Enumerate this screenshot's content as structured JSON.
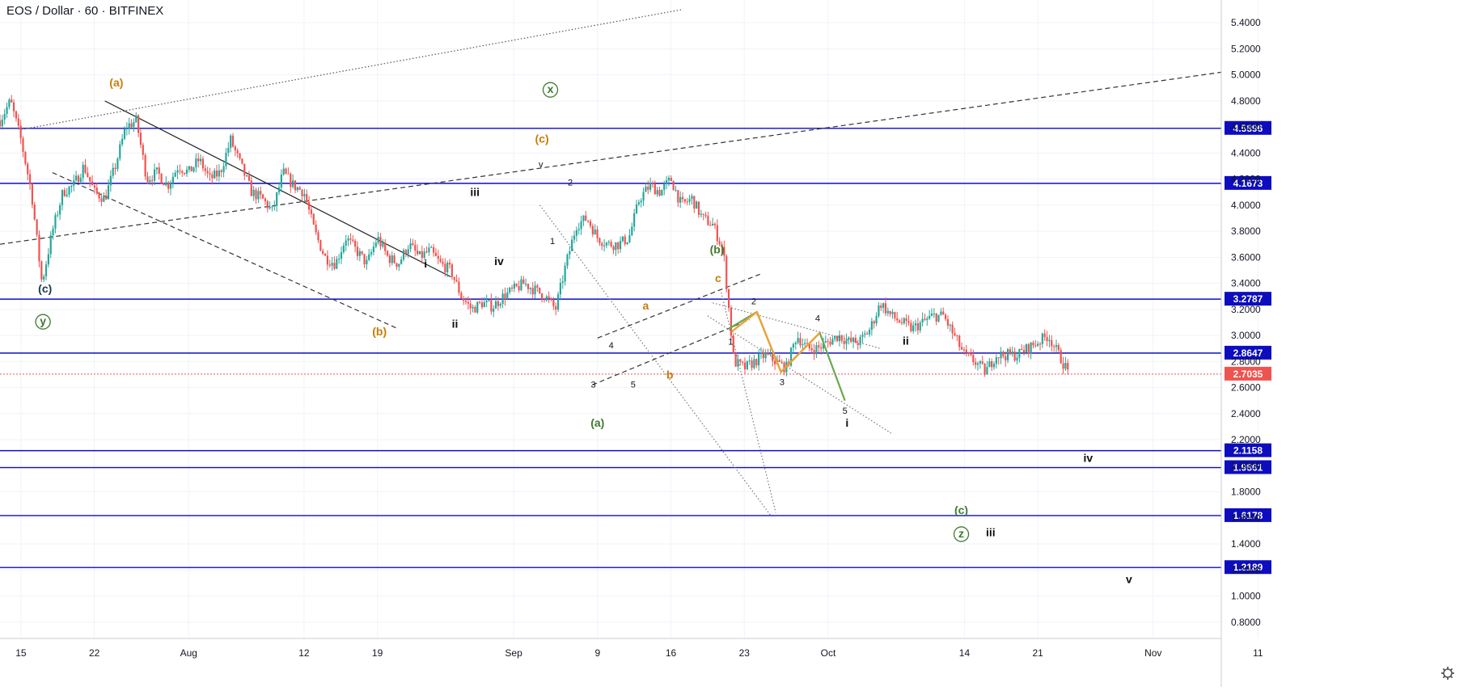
{
  "header": {
    "title": "EOS / Dollar · 60 · BITFINEX"
  },
  "colors": {
    "up": "#26a69a",
    "down": "#ef5350",
    "level": "#0d0dbf",
    "current": "#ef5350",
    "orange": "#c77d07",
    "green": "#3e7a2f",
    "dark": "#1b3a4b",
    "black": "#111111",
    "wave_green": "#6aa84f",
    "wave_orange": "#f0a030"
  },
  "chart_data": {
    "type": "candlestick",
    "title": "EOS / Dollar · 60 · BITFINEX",
    "ylim": [
      0.6,
      5.5
    ],
    "yticks": [
      5.4,
      5.2,
      5.0,
      4.8,
      4.6,
      4.4,
      4.2,
      4.0,
      3.8,
      3.6,
      3.4,
      3.2,
      3.0,
      2.8,
      2.6,
      2.4,
      2.2,
      2.0,
      1.8,
      1.6,
      1.4,
      1.2,
      1.0,
      0.8
    ],
    "x_domain_days": [
      0,
      116.5
    ],
    "xticks": [
      {
        "label": "15",
        "day": 2
      },
      {
        "label": "22",
        "day": 9
      },
      {
        "label": "Aug",
        "day": 18
      },
      {
        "label": "12",
        "day": 29
      },
      {
        "label": "19",
        "day": 36
      },
      {
        "label": "Sep",
        "day": 49
      },
      {
        "label": "9",
        "day": 57
      },
      {
        "label": "16",
        "day": 64
      },
      {
        "label": "23",
        "day": 71
      },
      {
        "label": "Oct",
        "day": 79
      },
      {
        "label": "14",
        "day": 92
      },
      {
        "label": "21",
        "day": 99
      },
      {
        "label": "Nov",
        "day": 110
      },
      {
        "label": "11",
        "day": 120
      }
    ],
    "price_path": [
      [
        0,
        4.65
      ],
      [
        1,
        4.8
      ],
      [
        2,
        4.5
      ],
      [
        3,
        4.1
      ],
      [
        4,
        3.4
      ],
      [
        5,
        3.8
      ],
      [
        6,
        4.1
      ],
      [
        7,
        4.15
      ],
      [
        8,
        4.3
      ],
      [
        9,
        4.1
      ],
      [
        10,
        4.05
      ],
      [
        11,
        4.3
      ],
      [
        12,
        4.6
      ],
      [
        13,
        4.65
      ],
      [
        14,
        4.2
      ],
      [
        15,
        4.25
      ],
      [
        16,
        4.15
      ],
      [
        17,
        4.3
      ],
      [
        18,
        4.25
      ],
      [
        19,
        4.35
      ],
      [
        20,
        4.2
      ],
      [
        21,
        4.25
      ],
      [
        22,
        4.5
      ],
      [
        23,
        4.3
      ],
      [
        24,
        4.1
      ],
      [
        25,
        4.05
      ],
      [
        26,
        3.95
      ],
      [
        27,
        4.25
      ],
      [
        28,
        4.15
      ],
      [
        29,
        4.1
      ],
      [
        30,
        3.8
      ],
      [
        31,
        3.6
      ],
      [
        32,
        3.55
      ],
      [
        33,
        3.75
      ],
      [
        34,
        3.65
      ],
      [
        35,
        3.55
      ],
      [
        36,
        3.75
      ],
      [
        37,
        3.6
      ],
      [
        38,
        3.55
      ],
      [
        39,
        3.7
      ],
      [
        40,
        3.6
      ],
      [
        41,
        3.65
      ],
      [
        42,
        3.55
      ],
      [
        43,
        3.5
      ],
      [
        44,
        3.3
      ],
      [
        45,
        3.2
      ],
      [
        46,
        3.25
      ],
      [
        47,
        3.22
      ],
      [
        48,
        3.3
      ],
      [
        49,
        3.35
      ],
      [
        50,
        3.4
      ],
      [
        51,
        3.35
      ],
      [
        52,
        3.3
      ],
      [
        53,
        3.2
      ],
      [
        54,
        3.55
      ],
      [
        55,
        3.85
      ],
      [
        56,
        3.9
      ],
      [
        57,
        3.75
      ],
      [
        58,
        3.7
      ],
      [
        59,
        3.7
      ],
      [
        60,
        3.75
      ],
      [
        61,
        4.05
      ],
      [
        62,
        4.15
      ],
      [
        63,
        4.1
      ],
      [
        64,
        4.2
      ],
      [
        65,
        4.0
      ],
      [
        66,
        4.05
      ],
      [
        67,
        3.9
      ],
      [
        68,
        3.85
      ],
      [
        69,
        3.65
      ],
      [
        70,
        2.8
      ],
      [
        71,
        2.75
      ],
      [
        72,
        2.8
      ],
      [
        73,
        2.85
      ],
      [
        74,
        2.8
      ],
      [
        75,
        2.75
      ],
      [
        76,
        3.0
      ],
      [
        77,
        2.9
      ],
      [
        78,
        2.9
      ],
      [
        79,
        2.95
      ],
      [
        80,
        3.0
      ],
      [
        81,
        2.95
      ],
      [
        82,
        2.95
      ],
      [
        83,
        3.05
      ],
      [
        84,
        3.25
      ],
      [
        85,
        3.15
      ],
      [
        86,
        3.1
      ],
      [
        87,
        3.05
      ],
      [
        88,
        3.1
      ],
      [
        89,
        3.15
      ],
      [
        90,
        3.15
      ],
      [
        91,
        3.0
      ],
      [
        92,
        2.85
      ],
      [
        93,
        2.8
      ],
      [
        94,
        2.72
      ],
      [
        95,
        2.85
      ],
      [
        96,
        2.85
      ],
      [
        97,
        2.85
      ],
      [
        98,
        2.9
      ],
      [
        99,
        2.95
      ],
      [
        100,
        3.0
      ],
      [
        101,
        2.85
      ],
      [
        102,
        2.7035
      ]
    ],
    "levels": [
      {
        "label": "4.5896",
        "value": 4.5896
      },
      {
        "label": "4.1673",
        "value": 4.1673
      },
      {
        "label": "3.2787",
        "value": 3.2787
      },
      {
        "label": "2.8647",
        "value": 2.8647
      },
      {
        "label": "2.1158",
        "value": 2.1158
      },
      {
        "label": "1.9861",
        "value": 1.9861
      },
      {
        "label": "1.6178",
        "value": 1.6178
      },
      {
        "label": "1.2189",
        "value": 1.2189
      }
    ],
    "current_price": {
      "label": "2.7035",
      "value": 2.7035
    },
    "trendlines": [
      {
        "style": "dotted",
        "color": "#555555",
        "points": [
          [
            2,
            4.58
          ],
          [
            65,
            5.5
          ]
        ]
      },
      {
        "style": "dashed",
        "color": "#333333",
        "points": [
          [
            0,
            3.7
          ],
          [
            116.5,
            5.02
          ]
        ]
      },
      {
        "style": "solid",
        "color": "#222222",
        "points": [
          [
            10,
            4.8
          ],
          [
            43,
            3.45
          ]
        ]
      },
      {
        "style": "dashed",
        "color": "#333333",
        "points": [
          [
            5,
            4.25
          ],
          [
            38,
            3.05
          ]
        ]
      },
      {
        "style": "dotted",
        "color": "#777777",
        "points": [
          [
            51.5,
            4.0
          ],
          [
            73.5,
            1.62
          ]
        ]
      },
      {
        "style": "dashed",
        "color": "#333333",
        "points": [
          [
            57,
            2.98
          ],
          [
            72.5,
            3.47
          ]
        ]
      },
      {
        "style": "dashed",
        "color": "#333333",
        "points": [
          [
            56.5,
            2.62
          ],
          [
            71.5,
            3.12
          ]
        ]
      },
      {
        "style": "dotted",
        "color": "#777777",
        "points": [
          [
            68,
            3.25
          ],
          [
            84,
            2.9
          ]
        ]
      },
      {
        "style": "dotted",
        "color": "#777777",
        "points": [
          [
            67.5,
            3.15
          ],
          [
            85,
            2.25
          ]
        ]
      },
      {
        "style": "dotted",
        "color": "#777777",
        "points": [
          [
            68.8,
            3.33
          ],
          [
            74,
            1.64
          ]
        ]
      }
    ],
    "projections": [
      {
        "color": "#6aa84f",
        "points": [
          [
            69.5,
            3.05
          ],
          [
            72.2,
            3.18
          ],
          [
            74.5,
            2.72
          ],
          [
            78.2,
            3.02
          ],
          [
            80.6,
            2.5
          ]
        ]
      },
      {
        "color": "#f0a030",
        "points": [
          [
            69.8,
            3.03
          ],
          [
            72.2,
            3.18
          ],
          [
            74.5,
            2.72
          ],
          [
            78.2,
            3.02
          ]
        ]
      }
    ],
    "labels": [
      {
        "text": "(a)",
        "day": 11.1,
        "price": 4.91,
        "color": "orange",
        "size": "lg"
      },
      {
        "text": "(c)",
        "day": 4.3,
        "price": 3.33,
        "color": "dark",
        "size": "lg"
      },
      {
        "text": "y",
        "day": 4.1,
        "price": 3.08,
        "color": "green",
        "size": "lg",
        "circle": true
      },
      {
        "text": "x",
        "day": 52.5,
        "price": 4.86,
        "color": "green",
        "size": "lg",
        "circle": true
      },
      {
        "text": "(c)",
        "day": 51.7,
        "price": 4.48,
        "color": "orange",
        "size": "lg"
      },
      {
        "text": "v",
        "day": 51.6,
        "price": 4.29,
        "color": "black",
        "size": "sm"
      },
      {
        "text": "2",
        "day": 54.4,
        "price": 4.15,
        "color": "black",
        "size": "sm"
      },
      {
        "text": "iii",
        "day": 45.3,
        "price": 4.07,
        "color": "black",
        "size": "lg"
      },
      {
        "text": "iv",
        "day": 47.6,
        "price": 3.54,
        "color": "black",
        "size": "lg"
      },
      {
        "text": "i",
        "day": 40.6,
        "price": 3.52,
        "color": "black",
        "size": "lg"
      },
      {
        "text": "ii",
        "day": 43.4,
        "price": 3.06,
        "color": "black",
        "size": "lg"
      },
      {
        "text": "(b)",
        "day": 36.2,
        "price": 3.0,
        "color": "orange",
        "size": "lg"
      },
      {
        "text": "1",
        "day": 52.7,
        "price": 3.7,
        "color": "black",
        "size": "sm"
      },
      {
        "text": "(a)",
        "day": 57.0,
        "price": 2.3,
        "color": "green",
        "size": "lg"
      },
      {
        "text": "3",
        "day": 56.6,
        "price": 2.6,
        "color": "black",
        "size": "sm"
      },
      {
        "text": "4",
        "day": 58.3,
        "price": 2.9,
        "color": "black",
        "size": "sm"
      },
      {
        "text": "5",
        "day": 60.4,
        "price": 2.6,
        "color": "black",
        "size": "sm"
      },
      {
        "text": "a",
        "day": 61.6,
        "price": 3.2,
        "color": "orange",
        "size": "lg"
      },
      {
        "text": "b",
        "day": 63.9,
        "price": 2.67,
        "color": "orange",
        "size": "lg"
      },
      {
        "text": "(b)",
        "day": 68.4,
        "price": 3.63,
        "color": "green",
        "size": "lg"
      },
      {
        "text": "c",
        "day": 68.5,
        "price": 3.41,
        "color": "orange",
        "size": "lg"
      },
      {
        "text": "1",
        "day": 69.7,
        "price": 2.93,
        "color": "black",
        "size": "sm"
      },
      {
        "text": "2",
        "day": 71.9,
        "price": 3.24,
        "color": "black",
        "size": "sm"
      },
      {
        "text": "3",
        "day": 74.6,
        "price": 2.62,
        "color": "black",
        "size": "sm"
      },
      {
        "text": "4",
        "day": 78.0,
        "price": 3.11,
        "color": "black",
        "size": "sm"
      },
      {
        "text": "5",
        "day": 80.6,
        "price": 2.4,
        "color": "black",
        "size": "sm"
      },
      {
        "text": "i",
        "day": 80.8,
        "price": 2.3,
        "color": "black",
        "size": "lg"
      },
      {
        "text": "ii",
        "day": 86.4,
        "price": 2.93,
        "color": "black",
        "size": "lg"
      },
      {
        "text": "iv",
        "day": 103.8,
        "price": 2.03,
        "color": "black",
        "size": "lg"
      },
      {
        "text": "(c)",
        "day": 91.7,
        "price": 1.63,
        "color": "green",
        "size": "lg"
      },
      {
        "text": "z",
        "day": 91.7,
        "price": 1.45,
        "color": "green",
        "size": "lg",
        "circle": true
      },
      {
        "text": "iii",
        "day": 94.5,
        "price": 1.46,
        "color": "black",
        "size": "lg"
      },
      {
        "text": "v",
        "day": 107.7,
        "price": 1.1,
        "color": "black",
        "size": "lg"
      }
    ]
  }
}
